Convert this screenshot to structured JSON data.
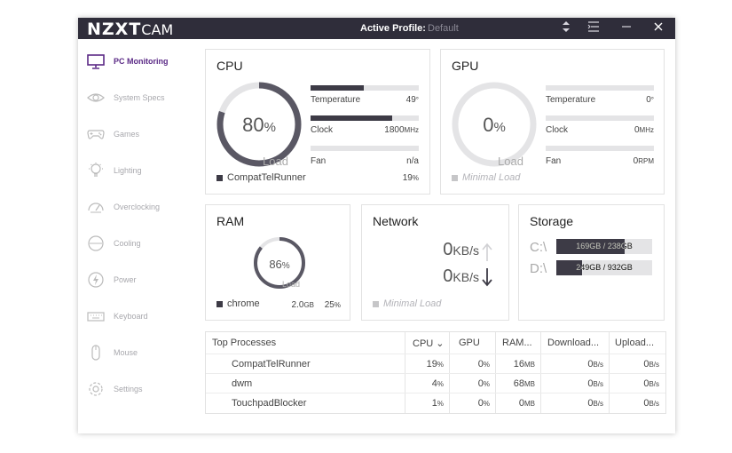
{
  "app": {
    "logo_main": "NZXT",
    "logo_sub": "CAM"
  },
  "titlebar": {
    "profile_label": "Active Profile:",
    "profile_value": "Default"
  },
  "sidebar": {
    "items": [
      {
        "label": "PC Monitoring",
        "icon": "monitor-icon",
        "active": true
      },
      {
        "label": "System Specs",
        "icon": "eye-icon"
      },
      {
        "label": "Games",
        "icon": "gamepad-icon"
      },
      {
        "label": "Lighting",
        "icon": "lightbulb-icon"
      },
      {
        "label": "Overclocking",
        "icon": "speedometer-icon"
      },
      {
        "label": "Cooling",
        "icon": "fan-icon"
      },
      {
        "label": "Power",
        "icon": "lightning-icon"
      },
      {
        "label": "Keyboard",
        "icon": "keyboard-icon"
      },
      {
        "label": "Mouse",
        "icon": "mouse-icon"
      },
      {
        "label": "Settings",
        "icon": "gear-icon"
      }
    ]
  },
  "cpu": {
    "title": "CPU",
    "load_value": "80",
    "load_unit": "%",
    "load_label": "Load",
    "load_fraction": 0.8,
    "temperature_label": "Temperature",
    "temperature_value": "49",
    "temperature_unit": "°",
    "temperature_fraction": 0.49,
    "clock_label": "Clock",
    "clock_value": "1800",
    "clock_unit": "MHz",
    "clock_fraction": 0.75,
    "fan_label": "Fan",
    "fan_value": "n/a",
    "fan_fraction": 0,
    "top_process": "CompatTelRunner",
    "top_process_value": "19",
    "top_process_unit": "%"
  },
  "gpu": {
    "title": "GPU",
    "load_value": "0",
    "load_unit": "%",
    "load_label": "Load",
    "load_fraction": 0,
    "temperature_label": "Temperature",
    "temperature_value": "0",
    "temperature_unit": "°",
    "clock_label": "Clock",
    "clock_value": "0",
    "clock_unit": "MHz",
    "fan_label": "Fan",
    "fan_value": "0",
    "fan_unit": "RPM",
    "status": "Minimal Load"
  },
  "ram": {
    "title": "RAM",
    "load_value": "86",
    "load_unit": "%",
    "load_label": "Load",
    "load_fraction": 0.86,
    "top_process": "chrome",
    "top_process_size": "2.0",
    "top_process_size_unit": "GB",
    "top_process_percent": "25",
    "top_process_percent_unit": "%"
  },
  "network": {
    "title": "Network",
    "upload_value": "0",
    "upload_unit": "KB/s",
    "download_value": "0",
    "download_unit": "KB/s",
    "status": "Minimal Load"
  },
  "storage": {
    "title": "Storage",
    "drives": [
      {
        "letter": "C:\\",
        "usage": "169GB / 238GB",
        "fraction": 0.71
      },
      {
        "letter": "D:\\",
        "usage": "249GB / 932GB",
        "fraction": 0.27
      }
    ]
  },
  "processes": {
    "headers": {
      "name": "Top Processes",
      "cpu": "CPU",
      "gpu": "GPU",
      "ram": "RAM...",
      "download": "Download...",
      "upload": "Upload..."
    },
    "rows": [
      {
        "name": "CompatTelRunner",
        "cpu": "19",
        "cpu_unit": "%",
        "gpu": "0",
        "gpu_unit": "%",
        "ram": "16",
        "ram_unit": "MB",
        "download": "0",
        "download_unit": "B/s",
        "upload": "0",
        "upload_unit": "B/s"
      },
      {
        "name": "dwm",
        "cpu": "4",
        "cpu_unit": "%",
        "gpu": "0",
        "gpu_unit": "%",
        "ram": "68",
        "ram_unit": "MB",
        "download": "0",
        "download_unit": "B/s",
        "upload": "0",
        "upload_unit": "B/s"
      },
      {
        "name": "TouchpadBlocker",
        "cpu": "1",
        "cpu_unit": "%",
        "gpu": "0",
        "gpu_unit": "%",
        "ram": "0",
        "ram_unit": "MB",
        "download": "0",
        "download_unit": "B/s",
        "upload": "0",
        "upload_unit": "B/s"
      }
    ]
  },
  "colors": {
    "titlebar": "#2f2d3a",
    "accent": "#5b2a86",
    "bar_fill": "#3d3b46",
    "track": "#e4e4e6"
  }
}
